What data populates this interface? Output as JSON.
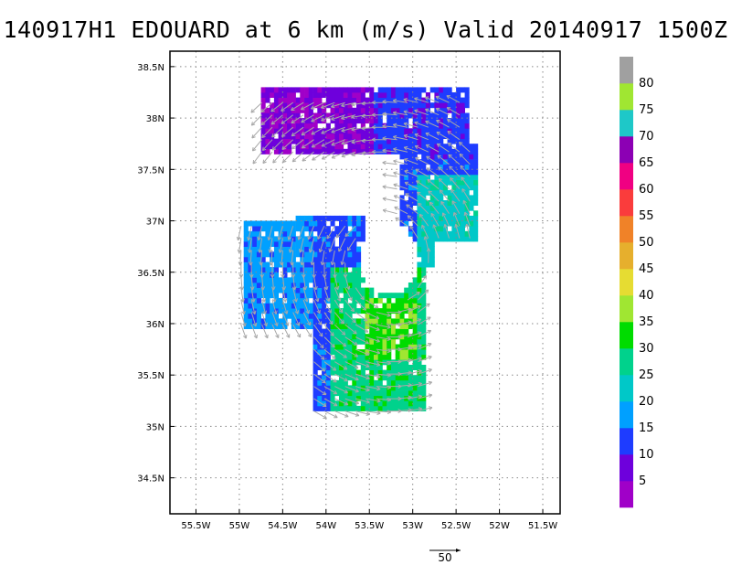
{
  "title": "140917H1 EDOUARD at 6 km (m/s) Valid 20140917 1500Z",
  "map": {
    "lon_range": [
      -55.8,
      -51.3
    ],
    "lat_range": [
      34.15,
      38.65
    ],
    "lon_ticks": [
      {
        "value": -55.5,
        "label": "55.5W"
      },
      {
        "value": -55.0,
        "label": "55W"
      },
      {
        "value": -54.5,
        "label": "54.5W"
      },
      {
        "value": -54.0,
        "label": "54W"
      },
      {
        "value": -53.5,
        "label": "53.5W"
      },
      {
        "value": -53.0,
        "label": "53W"
      },
      {
        "value": -52.5,
        "label": "52.5W"
      },
      {
        "value": -52.0,
        "label": "52W"
      },
      {
        "value": -51.5,
        "label": "51.5W"
      }
    ],
    "lat_ticks": [
      {
        "value": 34.5,
        "label": "34.5N"
      },
      {
        "value": 35.0,
        "label": "35N"
      },
      {
        "value": 35.5,
        "label": "35.5N"
      },
      {
        "value": 36.0,
        "label": "36N"
      },
      {
        "value": 36.5,
        "label": "36.5N"
      },
      {
        "value": 37.0,
        "label": "37N"
      },
      {
        "value": 37.5,
        "label": "37.5N"
      },
      {
        "value": 38.0,
        "label": "38N"
      },
      {
        "value": 38.5,
        "label": "38.5N"
      }
    ],
    "grid": "dotted",
    "wind_field": {
      "center_lon": -53.3,
      "center_lat": 36.6,
      "regions": [
        {
          "name": "north-arc",
          "lon": [
            -54.8,
            -52.4
          ],
          "lat": [
            37.6,
            38.25
          ]
        },
        {
          "name": "east-band",
          "lon": [
            -53.2,
            -52.3
          ],
          "lat": [
            36.75,
            37.7
          ]
        },
        {
          "name": "west-band",
          "lon": [
            -55.0,
            -54.2
          ],
          "lat": [
            35.9,
            36.95
          ]
        },
        {
          "name": "mid-west",
          "lon": [
            -54.4,
            -53.6
          ],
          "lat": [
            36.4,
            37.0
          ]
        },
        {
          "name": "south-core",
          "lon": [
            -54.2,
            -52.9
          ],
          "lat": [
            35.15,
            36.6
          ]
        },
        {
          "name": "center-east",
          "lon": [
            -53.4,
            -52.8
          ],
          "lat": [
            36.5,
            36.85
          ]
        }
      ]
    },
    "vector_reference": {
      "value": "50"
    }
  },
  "colorbar": {
    "levels": [
      "5",
      "10",
      "15",
      "20",
      "25",
      "30",
      "35",
      "40",
      "45",
      "50",
      "55",
      "60",
      "65",
      "70",
      "75",
      "80"
    ],
    "colors": [
      "#a000c8",
      "#6e00dc",
      "#1e3cff",
      "#00a0ff",
      "#00c8c8",
      "#00d28c",
      "#00dc00",
      "#a0e632",
      "#e6dc32",
      "#e6af2d",
      "#f08228",
      "#fa3c3c",
      "#f00082",
      "#8c00b4",
      "#1ec8c8",
      "#a0e632",
      "#a0a0a0"
    ]
  }
}
